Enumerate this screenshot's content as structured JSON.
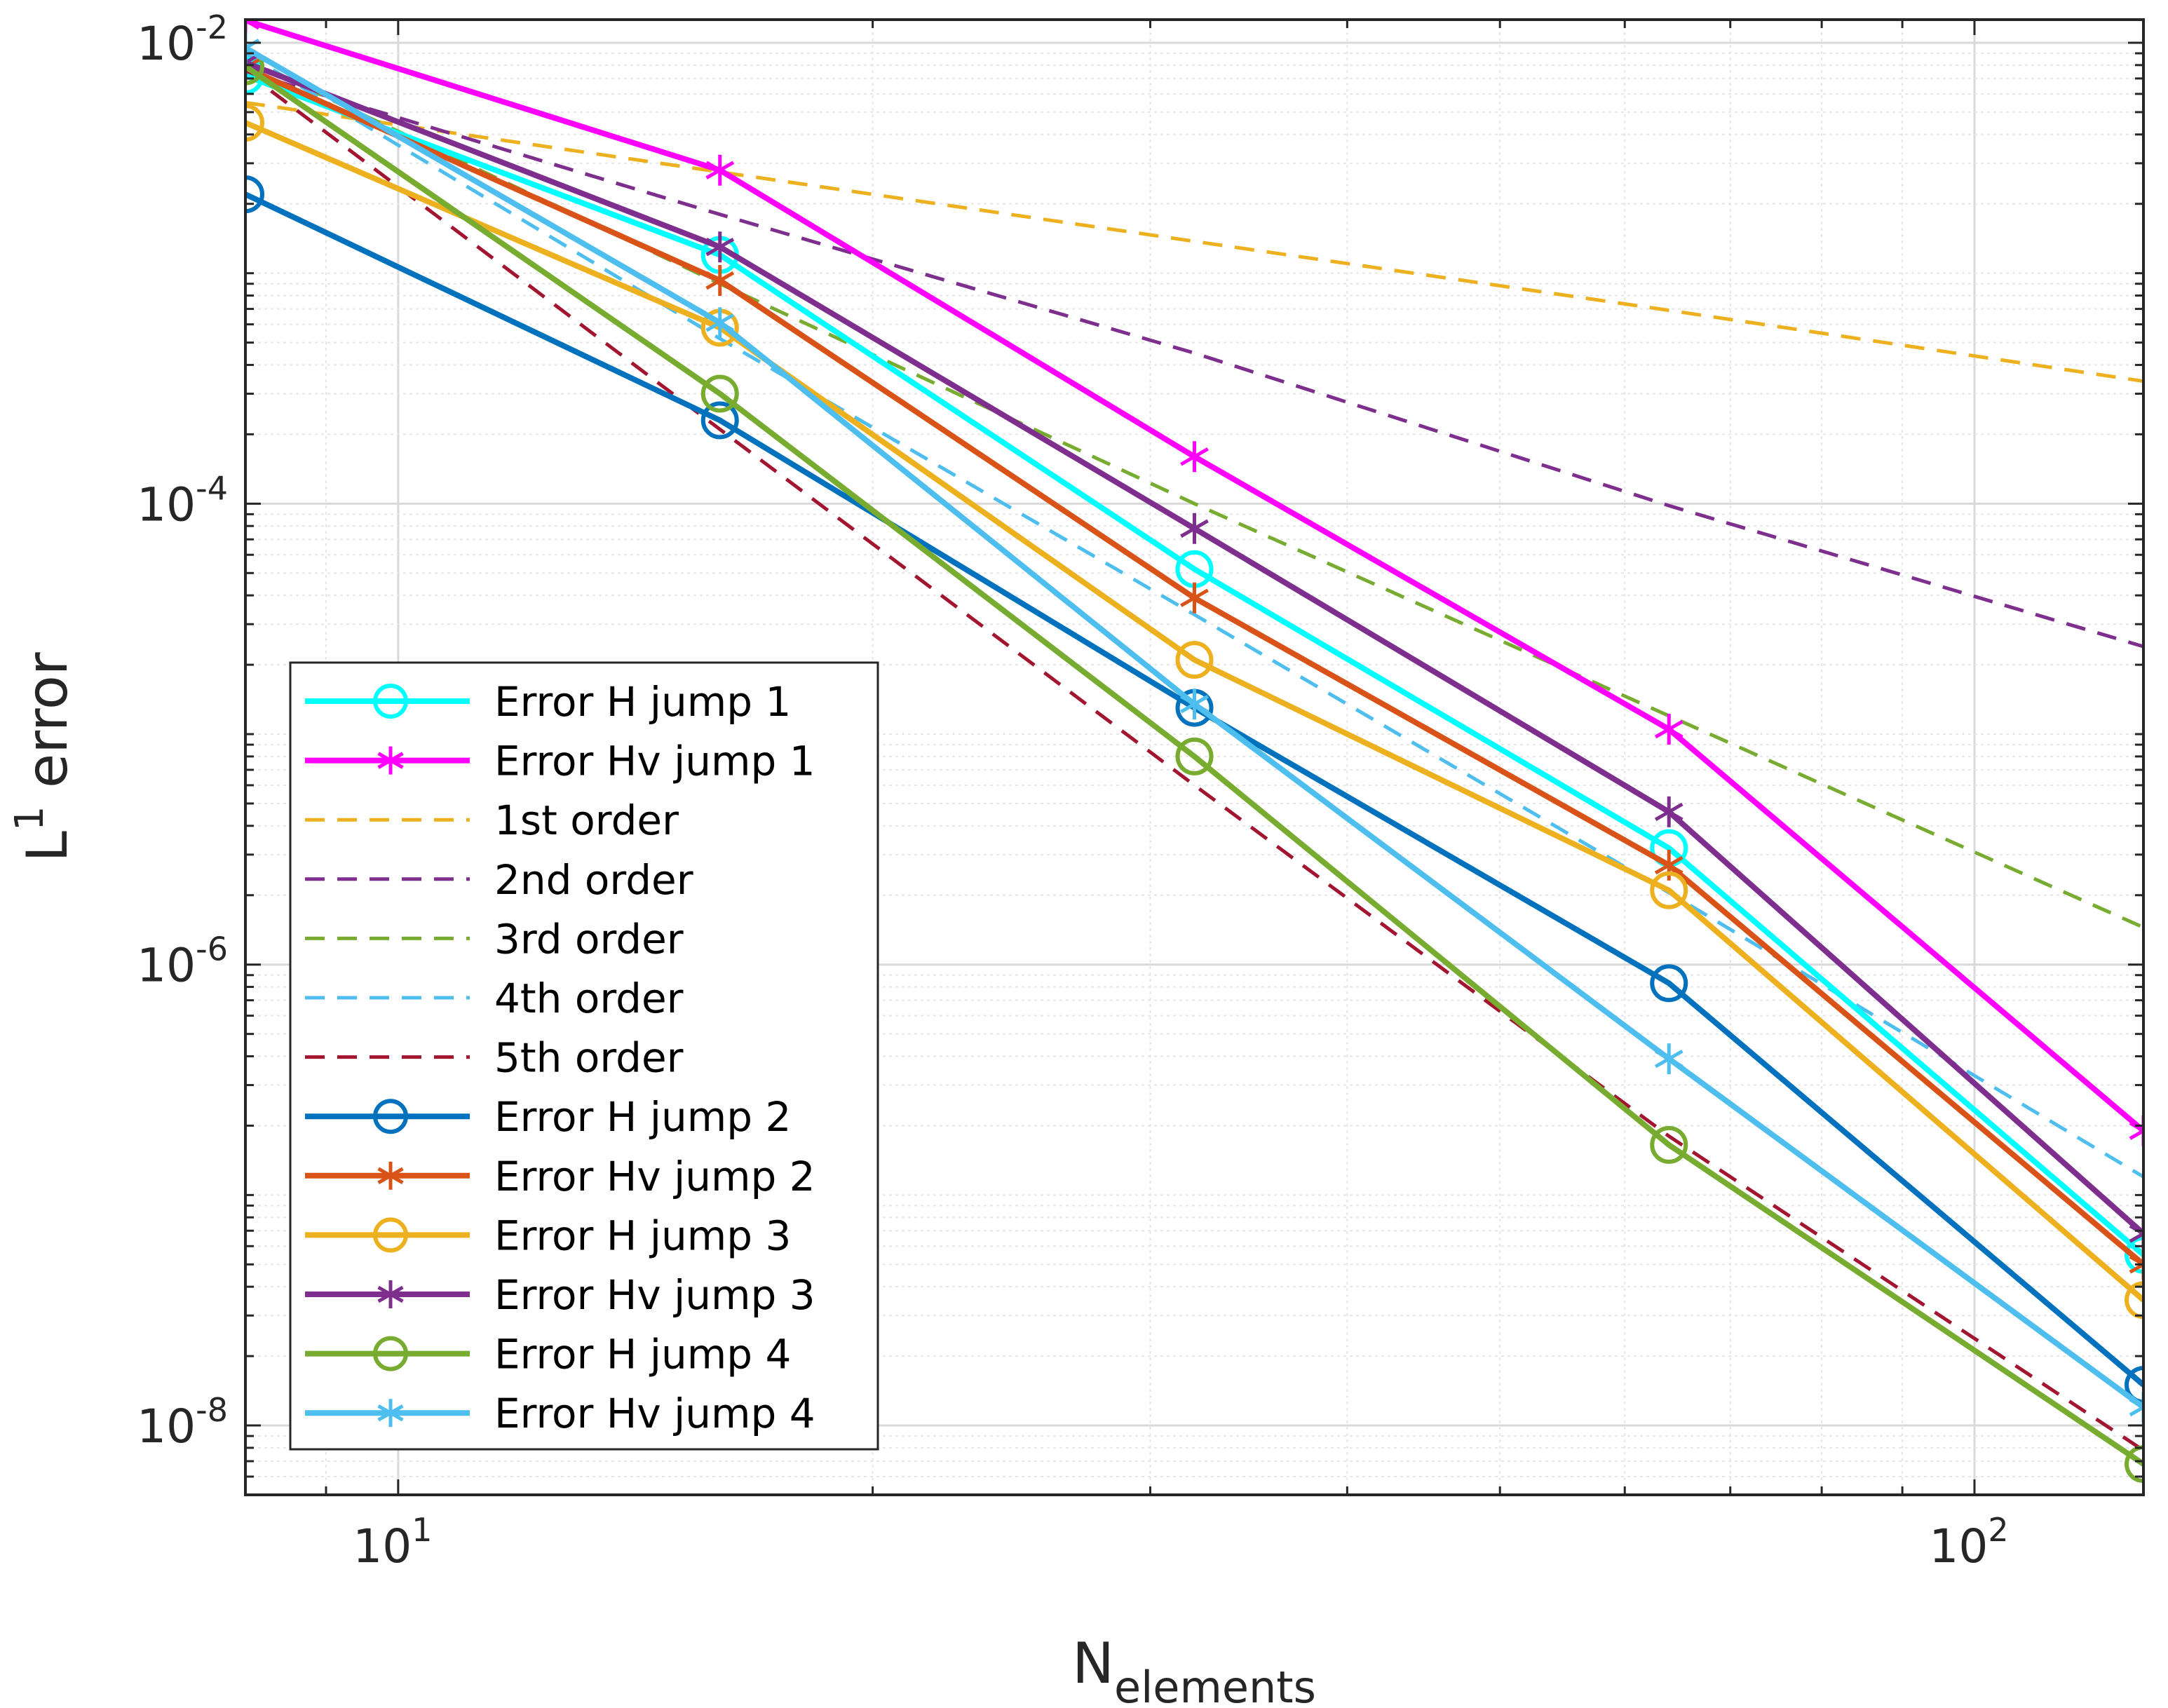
{
  "chart_data": {
    "type": "line",
    "xlabel": {
      "base": "N",
      "sub": "elements"
    },
    "ylabel": {
      "base": "L",
      "sup": "1",
      "rest": " error"
    },
    "xscale": "log",
    "yscale": "log",
    "xlim": [
      8,
      128
    ],
    "ylim": [
      5e-09,
      0.0126
    ],
    "grid": true,
    "minor_grid": true,
    "legend_position": "lower-left",
    "x_ticks": [
      {
        "value": 10,
        "base": "10",
        "exp": "1"
      },
      {
        "value": 100,
        "base": "10",
        "exp": "2"
      }
    ],
    "y_ticks": [
      {
        "value": 0.01,
        "base": "10",
        "exp": "-2"
      },
      {
        "value": 0.0001,
        "base": "10",
        "exp": "-4"
      },
      {
        "value": 1e-06,
        "base": "10",
        "exp": "-6"
      },
      {
        "value": 1e-08,
        "base": "10",
        "exp": "-8"
      }
    ],
    "x": [
      8,
      16,
      32,
      64,
      128
    ],
    "series": [
      {
        "name": "Error H jump 1",
        "color": "#00FFFF",
        "style": "solid",
        "marker": "circle",
        "values": [
          0.0072,
          0.0012,
          5.2e-05,
          3.2e-06,
          5.5e-08
        ]
      },
      {
        "name": "Error Hv jump 1",
        "color": "#FF00FF",
        "style": "solid",
        "marker": "asterisk",
        "values": [
          0.0125,
          0.0028,
          0.00016,
          1.05e-05,
          1.9e-07
        ]
      },
      {
        "name": "1st order",
        "color": "#EDB120",
        "style": "dashed",
        "marker": "none",
        "values": [
          0.0055,
          0.00275,
          0.001375,
          0.00069,
          0.00034
        ]
      },
      {
        "name": "2nd order",
        "color": "#7E2F8E",
        "style": "dashed",
        "marker": "none",
        "values": [
          0.0075,
          0.0018,
          0.00045,
          9.8e-05,
          2.4e-05
        ]
      },
      {
        "name": "3rd order",
        "color": "#77AC30",
        "style": "dashed",
        "marker": "none",
        "values": [
          0.0085,
          0.0009,
          0.0001,
          1.2e-05,
          1.45e-06
        ]
      },
      {
        "name": "4th order",
        "color": "#4DBEEE",
        "style": "dashed",
        "marker": "none",
        "values": [
          0.009,
          0.00052,
          3.3e-05,
          2.05e-06,
          1.2e-07
        ]
      },
      {
        "name": "5th order",
        "color": "#A2142F",
        "style": "dashed",
        "marker": "none",
        "values": [
          0.0075,
          0.00021,
          6e-06,
          1.8e-07,
          7.8e-09
        ]
      },
      {
        "name": "Error H jump 2",
        "color": "#0072BD",
        "style": "solid",
        "marker": "circle",
        "values": [
          0.0022,
          0.00023,
          1.3e-05,
          8.3e-07,
          1.5e-08
        ]
      },
      {
        "name": "Error Hv jump 2",
        "color": "#D95319",
        "style": "solid",
        "marker": "asterisk",
        "values": [
          0.0078,
          0.00093,
          3.9e-05,
          2.7e-06,
          5e-08
        ]
      },
      {
        "name": "Error H jump 3",
        "color": "#EDB120",
        "style": "solid",
        "marker": "circle",
        "values": [
          0.0045,
          0.00058,
          2.1e-05,
          2.1e-06,
          3.5e-08
        ]
      },
      {
        "name": "Error Hv jump 3",
        "color": "#7E2F8E",
        "style": "solid",
        "marker": "asterisk",
        "values": [
          0.0082,
          0.0013,
          7.8e-05,
          4.6e-06,
          6.8e-08
        ]
      },
      {
        "name": "Error H jump 4",
        "color": "#77AC30",
        "style": "solid",
        "marker": "circle",
        "values": [
          0.0079,
          0.0003,
          8e-06,
          1.65e-07,
          6.8e-09
        ]
      },
      {
        "name": "Error Hv jump 4",
        "color": "#4DBEEE",
        "style": "solid",
        "marker": "asterisk",
        "values": [
          0.0095,
          0.00061,
          1.35e-05,
          3.9e-07,
          1.2e-08
        ]
      }
    ]
  }
}
